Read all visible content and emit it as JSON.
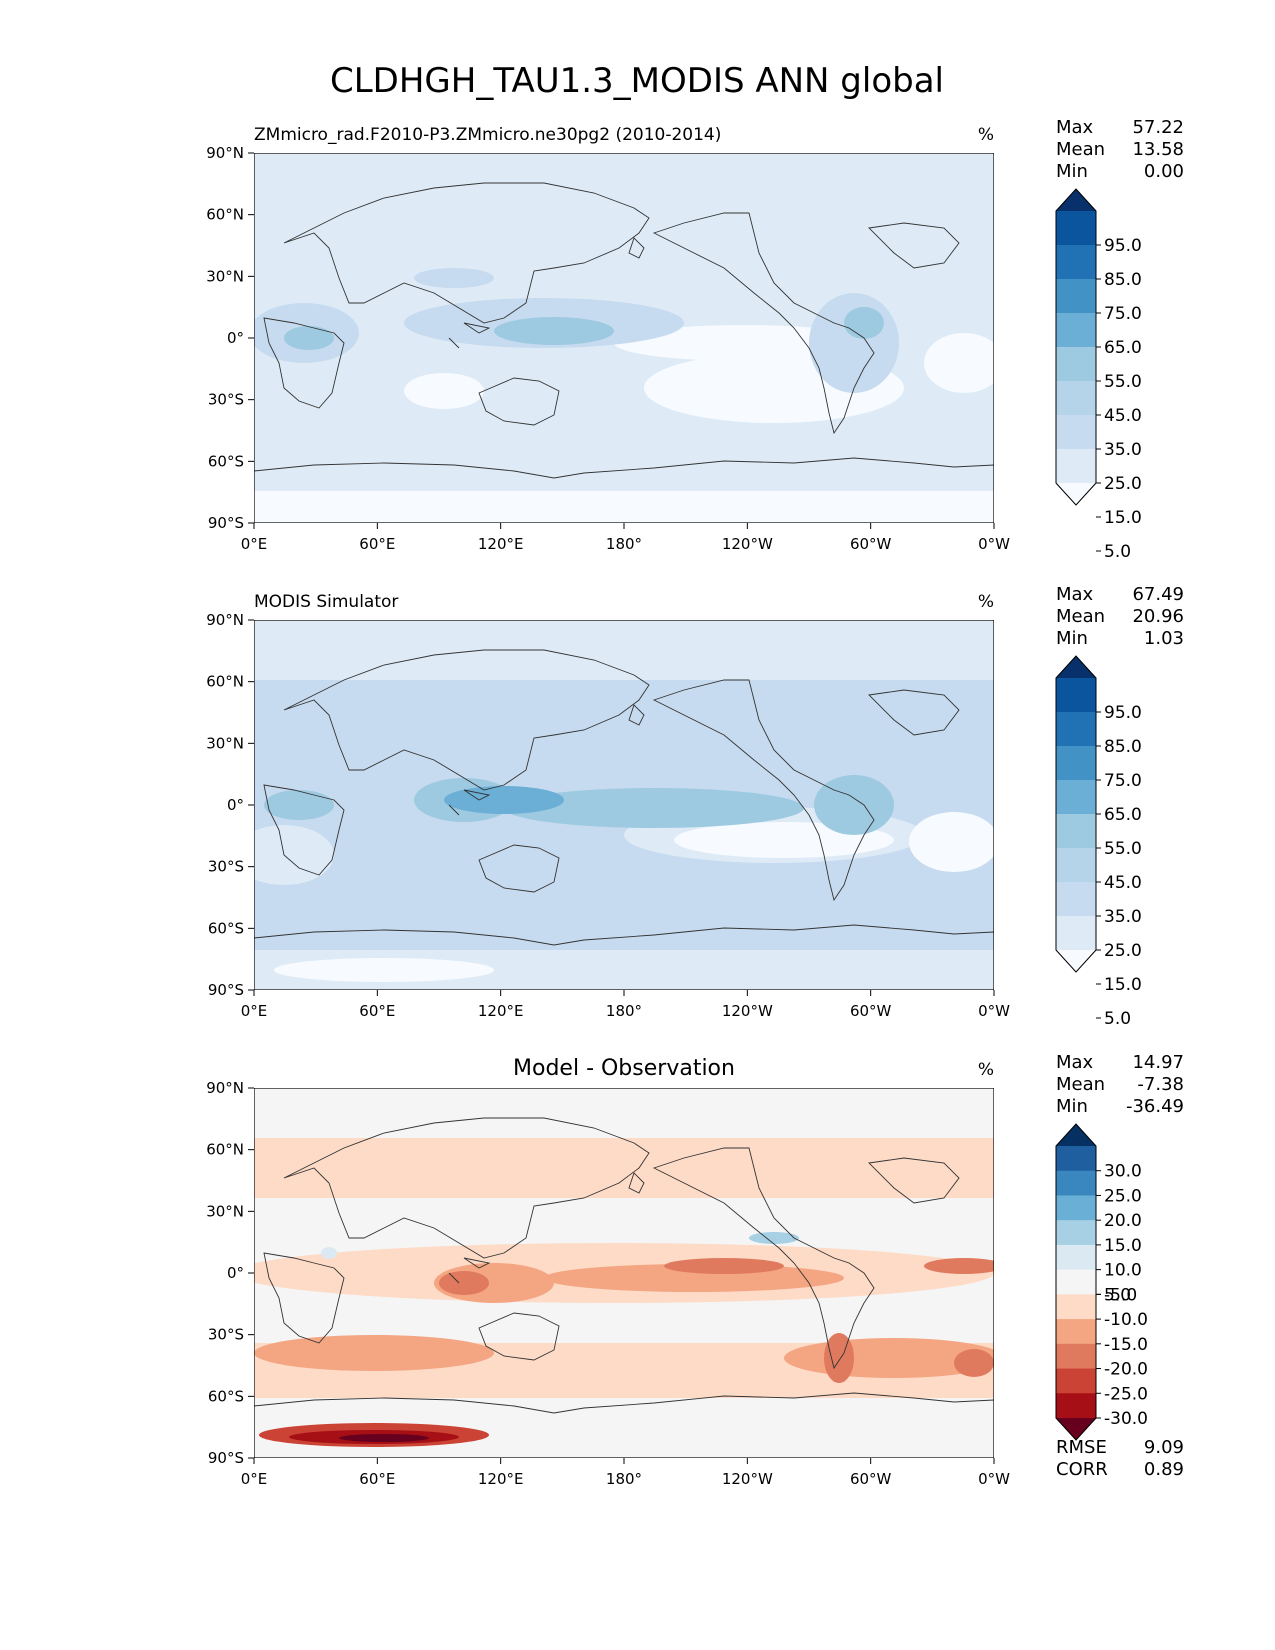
{
  "figure": {
    "title": "CLDHGH_TAU1.3_MODIS ANN global"
  },
  "colors": {
    "blues": [
      "#f7fbff",
      "#deebf7",
      "#c6dbef",
      "#b5d4e9",
      "#9ecae1",
      "#6baed6",
      "#4292c6",
      "#2171b5",
      "#0b559f",
      "#08306b"
    ],
    "diverging": [
      "#67001f",
      "#a50f15",
      "#cb4335",
      "#e07a5f",
      "#f4a582",
      "#fddbc7",
      "#f5f5f5",
      "#dbeaf2",
      "#a7d0e4",
      "#6aafd6",
      "#3a87bf",
      "#1f5fa0",
      "#053061"
    ],
    "coast": "#333333"
  },
  "axes": {
    "lat_ticks": [
      "90°N",
      "60°N",
      "30°N",
      "0°",
      "30°S",
      "60°S",
      "90°S"
    ],
    "lon_ticks": [
      "0°E",
      "60°E",
      "120°E",
      "180°",
      "120°W",
      "60°W",
      "0°W"
    ]
  },
  "panels": [
    {
      "left_title": "ZMmicro_rad.F2010-P3.ZMmicro.ne30pg2 (2010-2014)",
      "center_title": "",
      "units": "%",
      "stats": [
        {
          "label": "Max",
          "value": "57.22"
        },
        {
          "label": "Mean",
          "value": "13.58"
        },
        {
          "label": "Min",
          "value": "0.00"
        }
      ],
      "colorbar": {
        "labels": [
          "95.0",
          "85.0",
          "75.0",
          "65.0",
          "55.0",
          "45.0",
          "35.0",
          "25.0",
          "15.0",
          "5.0"
        ],
        "extend": "both"
      }
    },
    {
      "left_title": "MODIS Simulator",
      "center_title": "",
      "units": "%",
      "stats": [
        {
          "label": "Max",
          "value": "67.49"
        },
        {
          "label": "Mean",
          "value": "20.96"
        },
        {
          "label": "Min",
          "value": "1.03"
        }
      ],
      "colorbar": {
        "labels": [
          "95.0",
          "85.0",
          "75.0",
          "65.0",
          "55.0",
          "45.0",
          "35.0",
          "25.0",
          "15.0",
          "5.0"
        ],
        "extend": "both"
      }
    },
    {
      "left_title": "",
      "center_title": "Model - Observation",
      "units": "%",
      "stats": [
        {
          "label": "Max",
          "value": "14.97"
        },
        {
          "label": "Mean",
          "value": "-7.38"
        },
        {
          "label": "Min",
          "value": "-36.49"
        }
      ],
      "colorbar": {
        "labels": [
          "30.0",
          "25.0",
          "20.0",
          "15.0",
          "10.0",
          "5.0",
          "-5.0",
          "-10.0",
          "-15.0",
          "-20.0",
          "-25.0",
          "-30.0"
        ],
        "extend": "both"
      },
      "metrics": [
        {
          "label": "RMSE",
          "value": "9.09"
        },
        {
          "label": "CORR",
          "value": "0.89"
        }
      ]
    }
  ]
}
